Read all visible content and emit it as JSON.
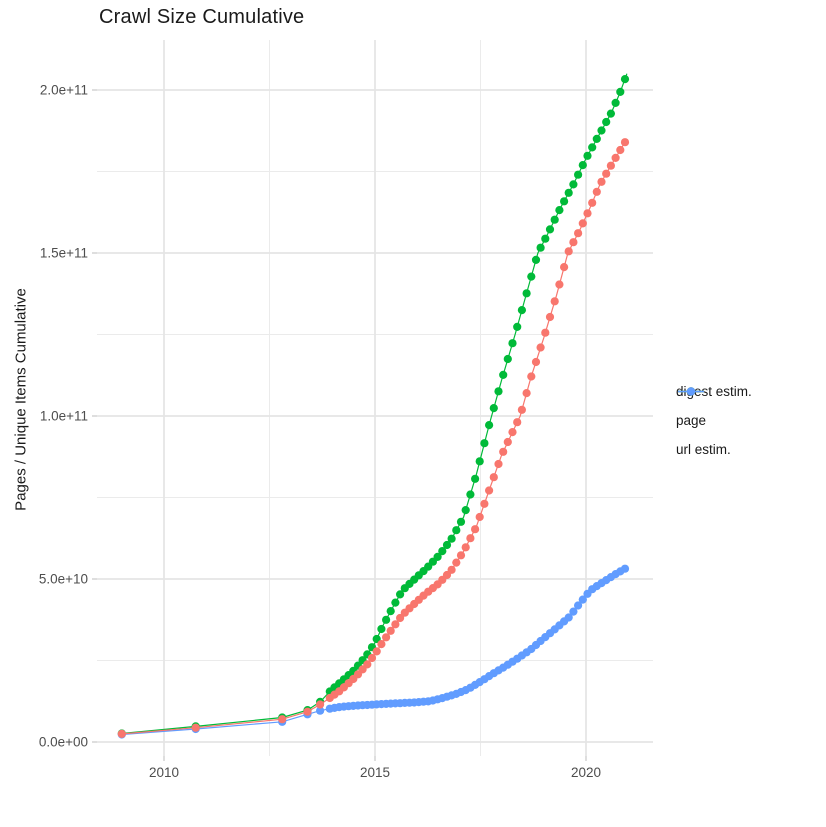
{
  "title": "Crawl Size Cumulative",
  "y_axis": {
    "label": "Pages / Unique Items Cumulative",
    "tick_labels": [
      "0.0e+00",
      "5.0e+10",
      "1.0e+11",
      "1.5e+11",
      "2.0e+11"
    ],
    "tick_values_e9": [
      0,
      50,
      100,
      150,
      200
    ],
    "minor_breaks_e9": [
      25,
      75,
      125,
      175
    ]
  },
  "x_axis": {
    "tick_labels": [
      "2010",
      "2015",
      "2020"
    ],
    "tick_values": [
      2010,
      2015,
      2020
    ],
    "minor_breaks": [
      2012.5,
      2017.5
    ]
  },
  "legend": {
    "items": [
      {
        "label": "digest estim.",
        "color": "#F8766D"
      },
      {
        "label": "page",
        "color": "#00BA38"
      },
      {
        "label": "url estim.",
        "color": "#619CFF"
      }
    ]
  },
  "chart_data": {
    "type": "line",
    "title": "Crawl Size Cumulative",
    "xlabel": "",
    "ylabel": "Pages / Unique Items Cumulative",
    "x_range": [
      2008.4,
      2021.6
    ],
    "y_range_e9": [
      -10,
      215
    ],
    "grid": "on",
    "legend_position": "right",
    "unit_note": "values in billions (1e9) of pages / unique items, cumulative",
    "point_sampling": {
      "sparse_years": [
        2009.0,
        2010.75,
        2012.8,
        2013.4,
        2013.7
      ],
      "dense_start": 2013.93,
      "dot_interval_years": 0.111
    },
    "series": [
      {
        "name": "digest estim.",
        "color": "#F8766D",
        "points_year_value_e9": [
          [
            2009.0,
            2.5
          ],
          [
            2010.75,
            4.4
          ],
          [
            2012.8,
            7.0
          ],
          [
            2013.4,
            9.3
          ],
          [
            2013.7,
            11.5
          ],
          [
            2013.93,
            13.5
          ],
          [
            2014.2,
            16.0
          ],
          [
            2014.5,
            19.5
          ],
          [
            2014.8,
            23.5
          ],
          [
            2015.0,
            27.0
          ],
          [
            2015.2,
            31.0
          ],
          [
            2015.45,
            35.5
          ],
          [
            2015.65,
            39.0
          ],
          [
            2015.9,
            42.0
          ],
          [
            2016.2,
            45.5
          ],
          [
            2016.5,
            48.5
          ],
          [
            2016.8,
            52.5
          ],
          [
            2017.1,
            58.5
          ],
          [
            2017.4,
            66.0
          ],
          [
            2017.7,
            77.0
          ],
          [
            2018.0,
            88.0
          ],
          [
            2018.44,
            100.0
          ],
          [
            2018.7,
            112.0
          ],
          [
            2019.0,
            124.0
          ],
          [
            2019.3,
            137.0
          ],
          [
            2019.57,
            150.0
          ],
          [
            2019.85,
            157.0
          ],
          [
            2020.1,
            164.0
          ],
          [
            2020.33,
            171.0
          ],
          [
            2020.6,
            177.0
          ],
          [
            2020.97,
            185.0
          ]
        ]
      },
      {
        "name": "page",
        "color": "#00BA38",
        "points_year_value_e9": [
          [
            2009.0,
            2.6
          ],
          [
            2010.75,
            4.8
          ],
          [
            2012.8,
            7.5
          ],
          [
            2013.4,
            9.8
          ],
          [
            2013.7,
            12.3
          ],
          [
            2013.93,
            15.5
          ],
          [
            2014.2,
            18.5
          ],
          [
            2014.5,
            22.0
          ],
          [
            2014.8,
            26.5
          ],
          [
            2015.0,
            30.5
          ],
          [
            2015.2,
            36.0
          ],
          [
            2015.45,
            42.0
          ],
          [
            2015.65,
            46.5
          ],
          [
            2015.9,
            49.5
          ],
          [
            2016.2,
            53.0
          ],
          [
            2016.5,
            57.0
          ],
          [
            2016.8,
            62.0
          ],
          [
            2017.1,
            69.0
          ],
          [
            2017.4,
            82.0
          ],
          [
            2017.72,
            98.0
          ],
          [
            2018.0,
            111.0
          ],
          [
            2018.32,
            125.0
          ],
          [
            2018.6,
            138.0
          ],
          [
            2018.86,
            150.0
          ],
          [
            2019.1,
            156.0
          ],
          [
            2019.4,
            164.0
          ],
          [
            2019.7,
            171.0
          ],
          [
            2020.0,
            179.0
          ],
          [
            2020.3,
            186.0
          ],
          [
            2020.6,
            193.0
          ],
          [
            2020.8,
            199.0
          ],
          [
            2020.97,
            205.0
          ]
        ]
      },
      {
        "name": "url estim.",
        "color": "#619CFF",
        "points_year_value_e9": [
          [
            2009.0,
            2.3
          ],
          [
            2010.75,
            4.0
          ],
          [
            2012.8,
            6.2
          ],
          [
            2013.4,
            8.5
          ],
          [
            2013.7,
            9.6
          ],
          [
            2013.93,
            10.2
          ],
          [
            2014.2,
            10.8
          ],
          [
            2014.6,
            11.2
          ],
          [
            2015.0,
            11.5
          ],
          [
            2015.4,
            11.8
          ],
          [
            2015.9,
            12.1
          ],
          [
            2016.3,
            12.5
          ],
          [
            2016.6,
            13.5
          ],
          [
            2016.9,
            14.6
          ],
          [
            2017.2,
            16.2
          ],
          [
            2017.5,
            18.5
          ],
          [
            2017.8,
            21.0
          ],
          [
            2018.1,
            23.3
          ],
          [
            2018.4,
            25.8
          ],
          [
            2018.7,
            28.5
          ],
          [
            2019.0,
            31.8
          ],
          [
            2019.3,
            35.0
          ],
          [
            2019.6,
            38.3
          ],
          [
            2019.85,
            42.5
          ],
          [
            2020.1,
            46.5
          ],
          [
            2020.4,
            49.0
          ],
          [
            2020.7,
            51.5
          ],
          [
            2020.97,
            53.5
          ]
        ]
      }
    ]
  }
}
